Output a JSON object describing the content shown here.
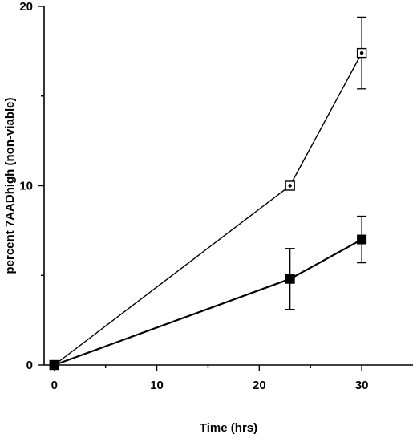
{
  "chart_data": {
    "type": "line",
    "xlabel": "Time (hrs)",
    "ylabel": "percent 7AADhigh (non-viable)",
    "xlim": [
      -1,
      35
    ],
    "ylim": [
      0,
      20
    ],
    "x_ticks": [
      0,
      10,
      20,
      30
    ],
    "y_ticks": [
      0,
      10,
      20
    ],
    "x_tick_labels": [
      "0",
      "10",
      "20",
      "30"
    ],
    "y_tick_labels": [
      "0",
      "10",
      "20"
    ],
    "grid": false,
    "series": [
      {
        "marker": "open-square-dot",
        "x": [
          0,
          23,
          30
        ],
        "y": [
          0,
          10,
          17.4
        ],
        "error": [
          0,
          0,
          2.0
        ]
      },
      {
        "marker": "filled-square",
        "x": [
          0,
          23,
          30
        ],
        "y": [
          0,
          4.8,
          7.0
        ],
        "error": [
          0,
          1.7,
          1.3
        ]
      }
    ]
  }
}
